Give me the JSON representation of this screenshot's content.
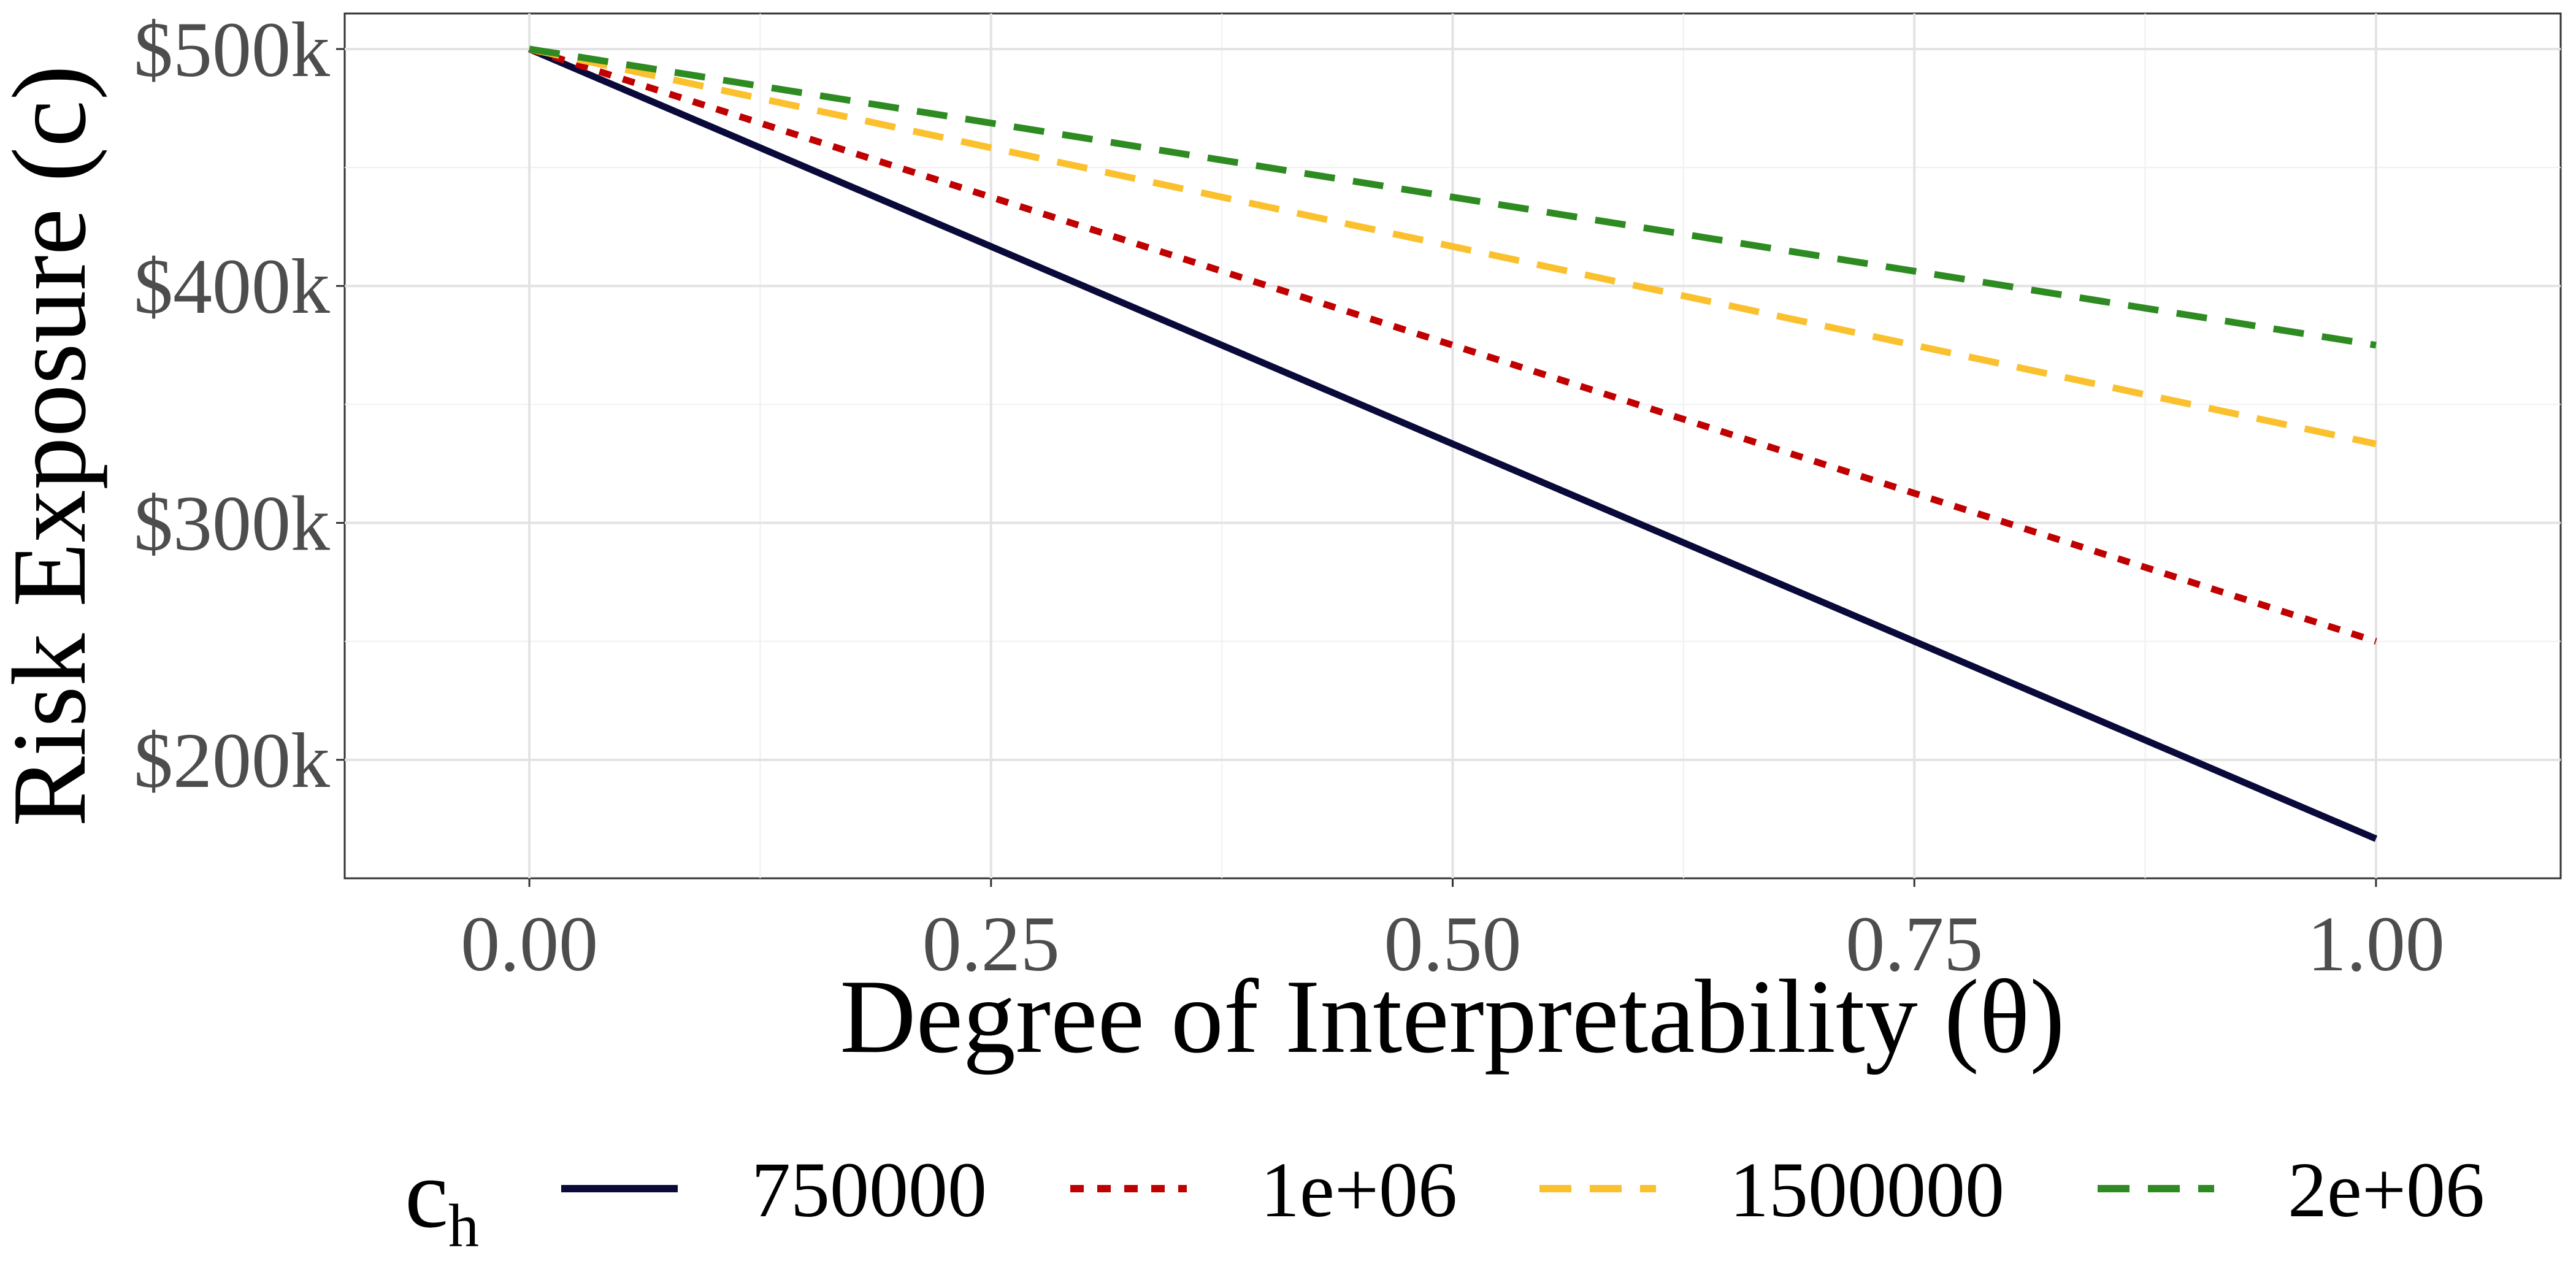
{
  "chart_data": {
    "type": "line",
    "title": "",
    "xlabel": "Degree of Interpretability (θ)",
    "ylabel": "Risk Exposure (c)",
    "xlim": [
      -0.1,
      1.1
    ],
    "ylim": [
      150000,
      515000
    ],
    "x_ticks": [
      0,
      0.25,
      0.5,
      0.75,
      1
    ],
    "x_tick_labels": [
      "0.00",
      "0.25",
      "0.50",
      "0.75",
      "1.00"
    ],
    "y_ticks": [
      200000,
      300000,
      400000,
      500000
    ],
    "y_tick_labels": [
      "$200k",
      "$300k",
      "$400k",
      "$500k"
    ],
    "grid": true,
    "legend_position": "bottom",
    "legend_title": "c",
    "legend_title_subscript": "h",
    "x": [
      0,
      1
    ],
    "series": [
      {
        "name": "750000",
        "values": [
          500000,
          166667
        ],
        "color": "#0a0a3a",
        "dash": "solid"
      },
      {
        "name": "1e+06",
        "values": [
          500000,
          250000
        ],
        "color": "#c00000",
        "dash": "dotted"
      },
      {
        "name": "1500000",
        "values": [
          500000,
          333333
        ],
        "color": "#fbc02d",
        "dash": "dashed"
      },
      {
        "name": "2e+06",
        "values": [
          500000,
          375000
        ],
        "color": "#2e8b22",
        "dash": "dashed"
      }
    ]
  }
}
